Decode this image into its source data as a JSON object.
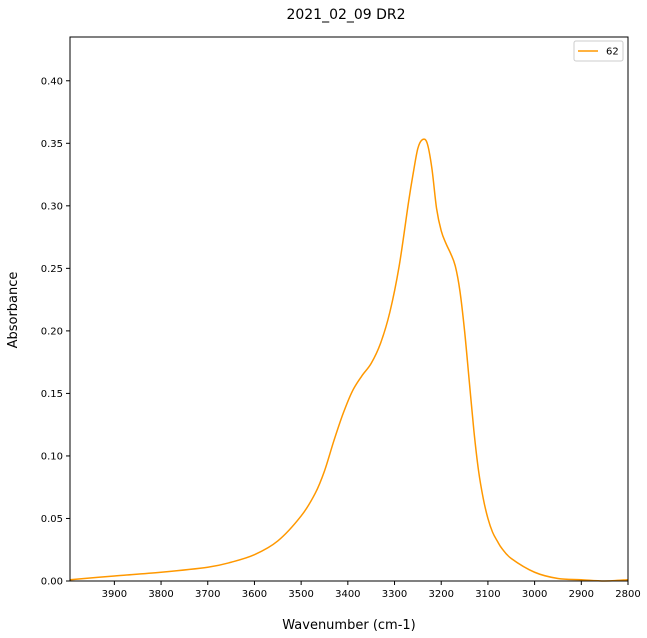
{
  "chart_data": {
    "type": "line",
    "title": "2021_02_09 DR2",
    "xlabel": "Wavenumber (cm-1)",
    "ylabel": "Absorbance",
    "xlim": [
      3995,
      2800
    ],
    "x_reversed": true,
    "ylim": [
      0,
      0.435
    ],
    "x_ticks": [
      3900,
      3800,
      3700,
      3600,
      3500,
      3400,
      3300,
      3200,
      3100,
      3000,
      2900,
      2800
    ],
    "y_ticks": [
      0.0,
      0.05,
      0.1,
      0.15,
      0.2,
      0.25,
      0.3,
      0.35,
      0.4
    ],
    "grid": false,
    "legend_position": "top-right",
    "series": [
      {
        "name": "62",
        "color": "#ff9800",
        "x": [
          3995,
          3900,
          3800,
          3700,
          3650,
          3600,
          3550,
          3500,
          3470,
          3450,
          3430,
          3410,
          3390,
          3370,
          3350,
          3330,
          3310,
          3290,
          3270,
          3260,
          3250,
          3240,
          3230,
          3220,
          3210,
          3200,
          3190,
          3180,
          3170,
          3160,
          3150,
          3140,
          3130,
          3120,
          3110,
          3100,
          3090,
          3080,
          3070,
          3050,
          3000,
          2950,
          2900,
          2850,
          2800
        ],
        "values": [
          0.001,
          0.004,
          0.007,
          0.011,
          0.015,
          0.021,
          0.032,
          0.052,
          0.07,
          0.088,
          0.112,
          0.134,
          0.152,
          0.164,
          0.174,
          0.19,
          0.215,
          0.252,
          0.303,
          0.326,
          0.346,
          0.353,
          0.35,
          0.33,
          0.298,
          0.28,
          0.27,
          0.262,
          0.252,
          0.232,
          0.2,
          0.16,
          0.12,
          0.088,
          0.066,
          0.05,
          0.039,
          0.032,
          0.026,
          0.018,
          0.007,
          0.002,
          0.001,
          0.0,
          0.001
        ]
      }
    ]
  }
}
